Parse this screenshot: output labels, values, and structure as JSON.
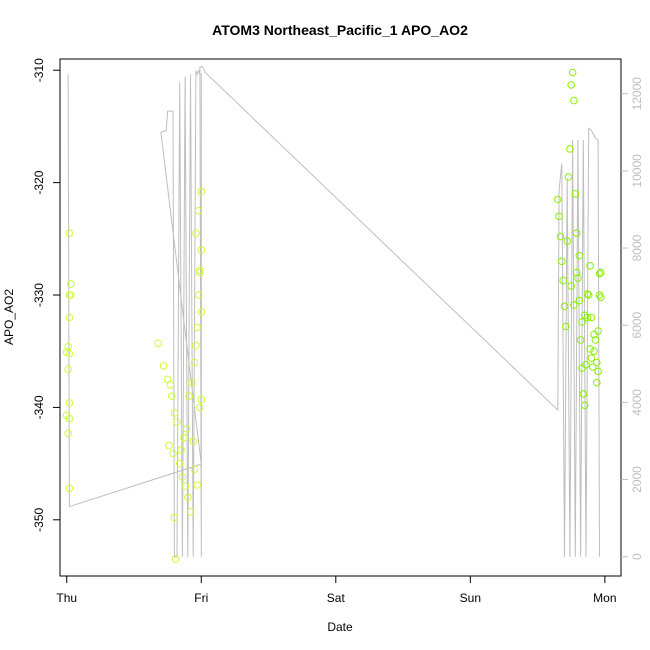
{
  "chart_data": {
    "type": "scatter",
    "title": "ATOM3 Northeast_Pacific_1 APO_AO2",
    "xlabel": "Date",
    "ylabel": "APO_AO2",
    "x_unit": "days",
    "xlim": [
      -0.05,
      4.12
    ],
    "ylim": [
      -355.0,
      -309.0
    ],
    "y2lim": [
      -500,
      12900
    ],
    "x_ticks": [
      {
        "value": 0,
        "label": "Thu"
      },
      {
        "value": 1,
        "label": "Fri"
      },
      {
        "value": 2,
        "label": "Sat"
      },
      {
        "value": 3,
        "label": "Sun"
      },
      {
        "value": 4,
        "label": "Mon"
      }
    ],
    "y_ticks": [
      -350,
      -340,
      -330,
      -320,
      -310
    ],
    "y2_ticks": [
      0,
      2000,
      4000,
      6000,
      8000,
      10000,
      12000
    ],
    "colors": {
      "line": "#bebebe",
      "point_start": "#ccff33",
      "point_end": "#66ee00"
    },
    "secondary_series": {
      "axis": "right",
      "points": [
        [
          0.01,
          12500
        ],
        [
          0.01,
          12500
        ],
        [
          0.02,
          1300
        ],
        [
          1.0,
          2400
        ],
        [
          0.7,
          11000
        ],
        [
          0.74,
          11050
        ],
        [
          0.75,
          11550
        ],
        [
          0.79,
          11550
        ],
        [
          0.8,
          0
        ],
        [
          0.82,
          0
        ],
        [
          0.84,
          12300
        ],
        [
          0.86,
          0
        ],
        [
          0.88,
          12450
        ],
        [
          0.9,
          0
        ],
        [
          0.92,
          12500
        ],
        [
          0.94,
          0
        ],
        [
          0.96,
          12600
        ],
        [
          0.97,
          12500
        ],
        [
          0.98,
          12600
        ],
        [
          0.99,
          12500
        ],
        [
          1.0,
          12500
        ],
        [
          1.0,
          0
        ],
        [
          0.99,
          12700
        ],
        [
          1.01,
          12700
        ],
        [
          1.03,
          12550
        ],
        [
          3.65,
          3800
        ],
        [
          3.66,
          9500
        ],
        [
          3.68,
          10200
        ],
        [
          3.7,
          0
        ],
        [
          3.72,
          9800
        ],
        [
          3.74,
          0
        ],
        [
          3.76,
          10800
        ],
        [
          3.78,
          0
        ],
        [
          3.8,
          10800
        ],
        [
          3.82,
          0
        ],
        [
          3.84,
          10800
        ],
        [
          3.86,
          0
        ],
        [
          3.88,
          11100
        ],
        [
          3.9,
          11050
        ],
        [
          3.93,
          10850
        ],
        [
          3.95,
          10800
        ],
        [
          3.96,
          0
        ]
      ]
    },
    "series": [
      {
        "color": "#ccff33",
        "points": [
          [
            0.02,
            -324.5
          ],
          [
            0.03,
            -329.0
          ],
          [
            0.02,
            -330.0
          ],
          [
            0.03,
            -330.0
          ],
          [
            0.02,
            -332.0
          ],
          [
            0.01,
            -334.6
          ],
          [
            0.0,
            -335.1
          ],
          [
            0.02,
            -335.2
          ],
          [
            0.01,
            -336.6
          ],
          [
            0.02,
            -339.6
          ],
          [
            0.0,
            -340.7
          ],
          [
            0.02,
            -341.0
          ],
          [
            0.01,
            -342.3
          ],
          [
            0.02,
            -347.2
          ],
          [
            0.68,
            -334.3
          ],
          [
            0.72,
            -336.3
          ],
          [
            0.75,
            -337.5
          ],
          [
            0.77,
            -338.0
          ],
          [
            0.78,
            -339.0
          ],
          [
            0.8,
            -340.5
          ],
          [
            0.82,
            -341.3
          ],
          [
            0.76,
            -343.4
          ],
          [
            0.79,
            -344.1
          ],
          [
            0.84,
            -345.0
          ],
          [
            0.86,
            -346.2
          ],
          [
            0.88,
            -347.0
          ],
          [
            0.9,
            -348.0
          ],
          [
            0.92,
            -349.3
          ],
          [
            0.8,
            -349.8
          ],
          [
            0.81,
            -353.5
          ],
          [
            0.85,
            -343.8
          ],
          [
            0.87,
            -342.7
          ],
          [
            0.89,
            -341.9
          ],
          [
            0.91,
            -339.0
          ],
          [
            0.93,
            -337.8
          ],
          [
            0.95,
            -336.0
          ],
          [
            0.96,
            -334.5
          ],
          [
            0.97,
            -332.9
          ],
          [
            0.98,
            -330.0
          ],
          [
            0.99,
            -328.0
          ],
          [
            1.0,
            -326.0
          ],
          [
            0.96,
            -324.5
          ],
          [
            0.98,
            -322.5
          ],
          [
            1.0,
            -320.8
          ],
          [
            0.99,
            -327.8
          ],
          [
            1.0,
            -331.5
          ],
          [
            0.94,
            -343.0
          ],
          [
            0.95,
            -345.5
          ],
          [
            0.97,
            -346.9
          ],
          [
            0.99,
            -340.0
          ],
          [
            1.0,
            -339.3
          ]
        ]
      },
      {
        "color": "#88f000",
        "points": [
          [
            3.65,
            -321.5
          ],
          [
            3.66,
            -323.0
          ],
          [
            3.67,
            -324.8
          ],
          [
            3.68,
            -327.0
          ],
          [
            3.69,
            -328.7
          ],
          [
            3.7,
            -331.0
          ],
          [
            3.71,
            -332.8
          ],
          [
            3.72,
            -325.2
          ],
          [
            3.73,
            -319.5
          ],
          [
            3.74,
            -317.0
          ],
          [
            3.75,
            -311.3
          ],
          [
            3.76,
            -310.2
          ],
          [
            3.77,
            -312.7
          ],
          [
            3.78,
            -321.0
          ],
          [
            3.79,
            -324.5
          ],
          [
            3.8,
            -328.5
          ],
          [
            3.81,
            -330.5
          ],
          [
            3.82,
            -334.0
          ],
          [
            3.83,
            -336.5
          ],
          [
            3.84,
            -338.8
          ],
          [
            3.85,
            -339.8
          ],
          [
            3.86,
            -336.2
          ],
          [
            3.87,
            -332.0
          ],
          [
            3.88,
            -330.0
          ],
          [
            3.89,
            -334.8
          ],
          [
            3.9,
            -335.6
          ],
          [
            3.91,
            -336.4
          ],
          [
            3.92,
            -335.0
          ],
          [
            3.93,
            -334.0
          ],
          [
            3.94,
            -337.8
          ],
          [
            3.95,
            -333.2
          ],
          [
            3.96,
            -330.0
          ],
          [
            3.97,
            -328.0
          ],
          [
            3.75,
            -329.2
          ],
          [
            3.77,
            -330.9
          ],
          [
            3.79,
            -328.0
          ],
          [
            3.81,
            -326.5
          ],
          [
            3.83,
            -332.4
          ],
          [
            3.85,
            -331.8
          ],
          [
            3.87,
            -329.9
          ],
          [
            3.89,
            -327.4
          ],
          [
            3.9,
            -332.0
          ],
          [
            3.92,
            -333.5
          ],
          [
            3.94,
            -336.0
          ],
          [
            3.95,
            -336.8
          ],
          [
            3.96,
            -328.1
          ],
          [
            3.97,
            -330.2
          ]
        ]
      }
    ]
  }
}
